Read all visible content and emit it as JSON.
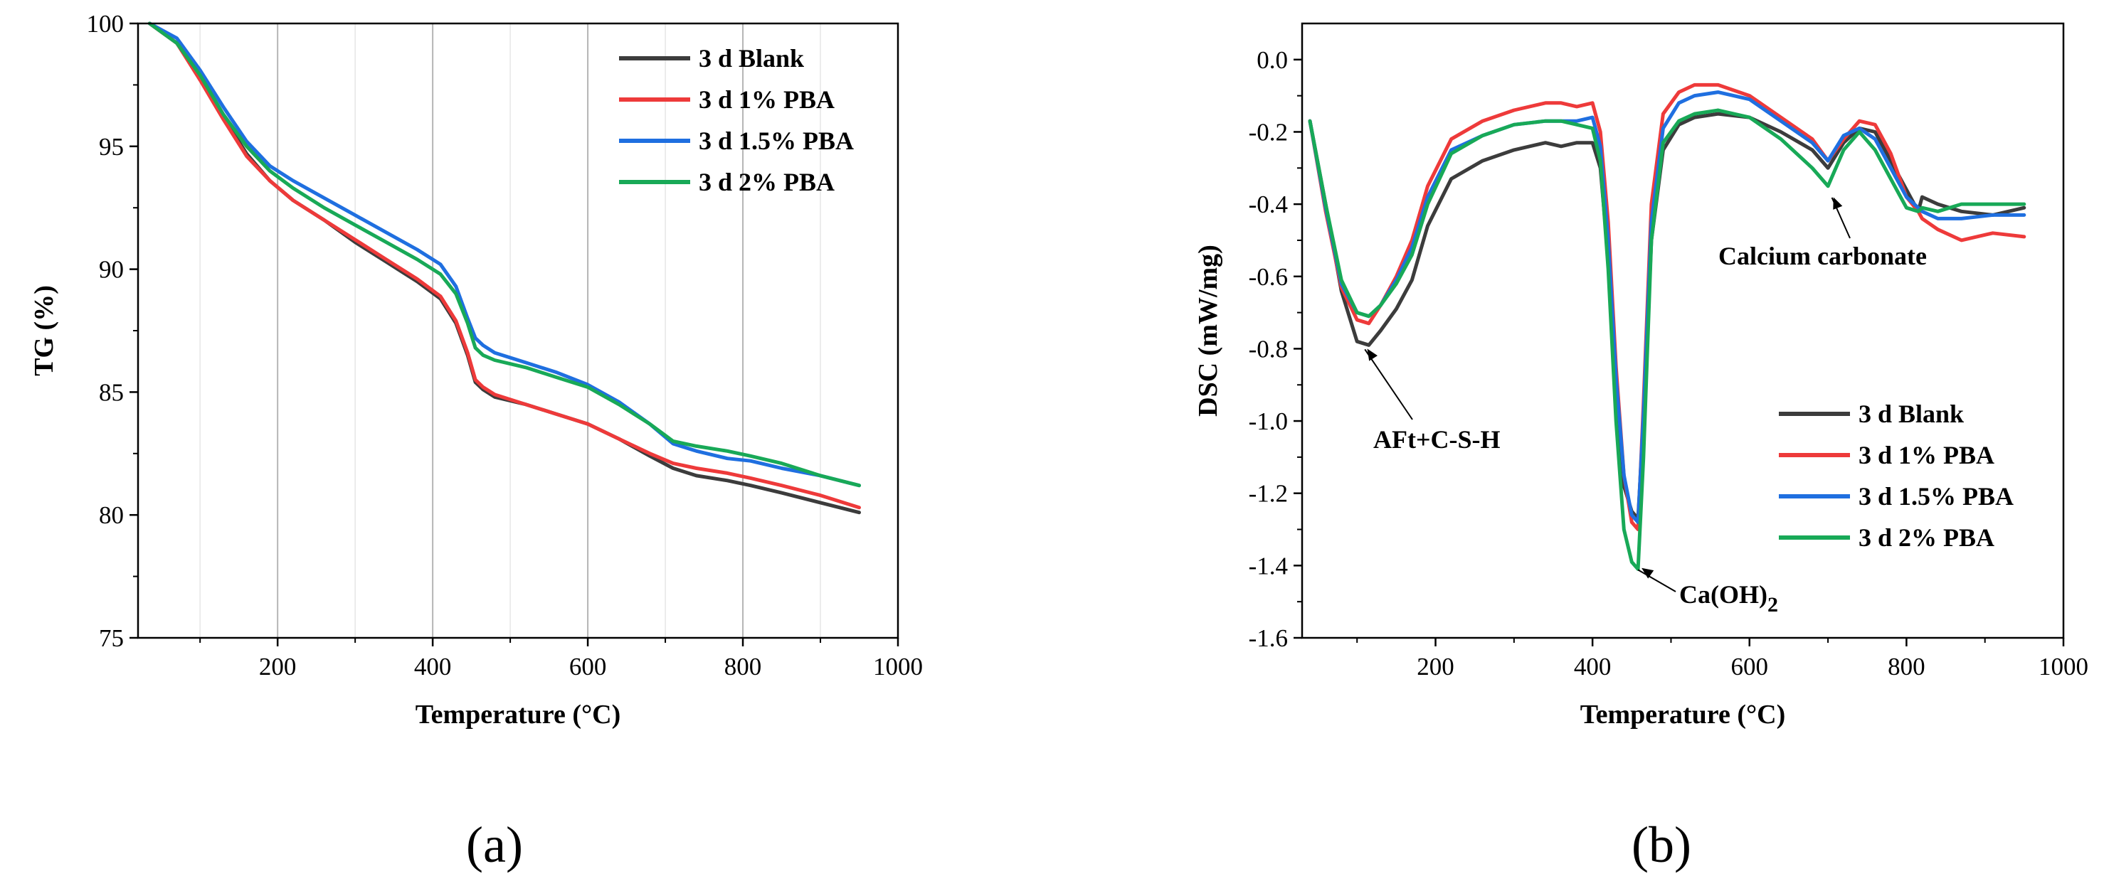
{
  "panel_labels": [
    "(a)",
    "(b)"
  ],
  "chart_data": [
    {
      "type": "line",
      "xlabel": "Temperature (°C)",
      "ylabel": "TG (%)",
      "xlim": [
        20,
        1000
      ],
      "ylim": [
        75,
        100
      ],
      "xticks": [
        200,
        400,
        600,
        800,
        1000
      ],
      "yticks": [
        75,
        80,
        85,
        90,
        95,
        100
      ],
      "grid": "vertical lines at 200, 400, 600, 800",
      "legend_position": "top-right",
      "series": [
        {
          "name": "3 d Blank",
          "color": "#3c3c3c",
          "x": [
            35,
            70,
            100,
            130,
            160,
            190,
            220,
            260,
            300,
            340,
            380,
            410,
            430,
            445,
            455,
            465,
            480,
            520,
            560,
            600,
            640,
            680,
            710,
            740,
            780,
            810,
            850,
            900,
            950
          ],
          "y": [
            100,
            99.2,
            97.8,
            96.2,
            94.7,
            93.6,
            92.8,
            92.0,
            91.1,
            90.3,
            89.5,
            88.8,
            87.8,
            86.5,
            85.4,
            85.1,
            84.8,
            84.5,
            84.1,
            83.7,
            83.1,
            82.4,
            81.9,
            81.6,
            81.4,
            81.2,
            80.9,
            80.5,
            80.1
          ]
        },
        {
          "name": "3 d 1% PBA",
          "color": "#ee3a3a",
          "x": [
            35,
            70,
            100,
            130,
            160,
            190,
            220,
            260,
            300,
            340,
            380,
            410,
            430,
            445,
            455,
            465,
            480,
            520,
            560,
            600,
            640,
            680,
            710,
            740,
            780,
            810,
            850,
            900,
            950
          ],
          "y": [
            100,
            99.2,
            97.7,
            96.1,
            94.6,
            93.6,
            92.8,
            92.0,
            91.2,
            90.4,
            89.6,
            88.9,
            87.9,
            86.6,
            85.5,
            85.2,
            84.9,
            84.5,
            84.1,
            83.7,
            83.1,
            82.5,
            82.1,
            81.9,
            81.7,
            81.5,
            81.2,
            80.8,
            80.3
          ]
        },
        {
          "name": "3 d 1.5% PBA",
          "color": "#1f6fe0",
          "x": [
            35,
            70,
            100,
            130,
            160,
            190,
            220,
            260,
            300,
            340,
            380,
            410,
            430,
            445,
            455,
            465,
            480,
            520,
            560,
            600,
            640,
            680,
            710,
            740,
            780,
            810,
            850,
            900,
            950
          ],
          "y": [
            100,
            99.4,
            98.1,
            96.6,
            95.2,
            94.2,
            93.6,
            92.9,
            92.2,
            91.5,
            90.8,
            90.2,
            89.3,
            88.0,
            87.2,
            86.9,
            86.6,
            86.2,
            85.8,
            85.3,
            84.6,
            83.7,
            82.9,
            82.6,
            82.3,
            82.2,
            81.9,
            81.6,
            81.2
          ]
        },
        {
          "name": "3 d 2% PBA",
          "color": "#18a957",
          "x": [
            35,
            70,
            100,
            130,
            160,
            190,
            220,
            260,
            300,
            340,
            380,
            410,
            430,
            445,
            455,
            465,
            480,
            520,
            560,
            600,
            640,
            680,
            710,
            740,
            780,
            810,
            850,
            900,
            950
          ],
          "y": [
            100,
            99.2,
            97.9,
            96.3,
            95.0,
            94.0,
            93.3,
            92.5,
            91.8,
            91.1,
            90.4,
            89.8,
            89.0,
            87.8,
            86.8,
            86.5,
            86.3,
            86.0,
            85.6,
            85.2,
            84.5,
            83.7,
            83.0,
            82.8,
            82.6,
            82.4,
            82.1,
            81.6,
            81.2
          ]
        }
      ]
    },
    {
      "type": "line",
      "xlabel": "Temperature (°C)",
      "ylabel": "DSC (mW/mg)",
      "xlim": [
        30,
        1000
      ],
      "ylim": [
        -1.6,
        0.1
      ],
      "xticks": [
        200,
        400,
        600,
        800,
        1000
      ],
      "yticks": [
        -1.6,
        -1.4,
        -1.2,
        -1.0,
        -0.8,
        -0.6,
        -0.4,
        -0.2,
        0.0
      ],
      "grid": false,
      "legend_position": "bottom-right",
      "annotations": [
        {
          "text": "AFt+C-S-H",
          "x": 110,
          "y": -0.79
        },
        {
          "text": "Ca(OH)",
          "subscript": "2",
          "x": 458,
          "y": -1.4
        },
        {
          "text": "Calcium carbonate",
          "x": 705,
          "y": -0.37
        }
      ],
      "series": [
        {
          "name": "3 d Blank",
          "color": "#3c3c3c",
          "x": [
            40,
            60,
            80,
            100,
            115,
            130,
            150,
            170,
            190,
            220,
            260,
            300,
            340,
            360,
            380,
            400,
            410,
            420,
            430,
            440,
            450,
            458,
            465,
            475,
            490,
            510,
            530,
            560,
            600,
            640,
            680,
            700,
            720,
            740,
            760,
            780,
            800,
            815,
            820,
            840,
            870,
            910,
            950
          ],
          "y": [
            -0.17,
            -0.4,
            -0.64,
            -0.78,
            -0.79,
            -0.75,
            -0.69,
            -0.61,
            -0.46,
            -0.33,
            -0.28,
            -0.25,
            -0.23,
            -0.24,
            -0.23,
            -0.23,
            -0.3,
            -0.55,
            -0.9,
            -1.18,
            -1.25,
            -1.27,
            -1.0,
            -0.5,
            -0.25,
            -0.18,
            -0.16,
            -0.15,
            -0.16,
            -0.2,
            -0.25,
            -0.3,
            -0.23,
            -0.19,
            -0.2,
            -0.28,
            -0.36,
            -0.42,
            -0.38,
            -0.4,
            -0.42,
            -0.43,
            -0.41
          ]
        },
        {
          "name": "3 d 1% PBA",
          "color": "#ee3a3a",
          "x": [
            40,
            60,
            80,
            100,
            115,
            130,
            150,
            170,
            190,
            220,
            260,
            300,
            340,
            360,
            380,
            400,
            410,
            420,
            430,
            440,
            450,
            458,
            465,
            475,
            490,
            510,
            530,
            560,
            600,
            640,
            680,
            700,
            720,
            740,
            760,
            780,
            800,
            815,
            820,
            840,
            870,
            910,
            950
          ],
          "y": [
            -0.17,
            -0.42,
            -0.63,
            -0.72,
            -0.73,
            -0.68,
            -0.6,
            -0.5,
            -0.35,
            -0.22,
            -0.17,
            -0.14,
            -0.12,
            -0.12,
            -0.13,
            -0.12,
            -0.2,
            -0.45,
            -0.85,
            -1.15,
            -1.28,
            -1.3,
            -0.95,
            -0.4,
            -0.15,
            -0.09,
            -0.07,
            -0.07,
            -0.1,
            -0.16,
            -0.22,
            -0.28,
            -0.22,
            -0.17,
            -0.18,
            -0.26,
            -0.38,
            -0.42,
            -0.44,
            -0.47,
            -0.5,
            -0.48,
            -0.49
          ]
        },
        {
          "name": "3 d 1.5% PBA",
          "color": "#1f6fe0",
          "x": [
            40,
            60,
            80,
            100,
            115,
            130,
            150,
            170,
            190,
            220,
            260,
            300,
            340,
            360,
            380,
            400,
            410,
            420,
            430,
            440,
            450,
            458,
            465,
            475,
            490,
            510,
            530,
            560,
            600,
            640,
            680,
            700,
            720,
            740,
            760,
            780,
            800,
            815,
            820,
            840,
            870,
            910,
            950
          ],
          "y": [
            -0.17,
            -0.41,
            -0.62,
            -0.7,
            -0.71,
            -0.68,
            -0.61,
            -0.52,
            -0.38,
            -0.25,
            -0.21,
            -0.18,
            -0.17,
            -0.17,
            -0.17,
            -0.16,
            -0.24,
            -0.5,
            -0.88,
            -1.15,
            -1.26,
            -1.28,
            -0.98,
            -0.45,
            -0.19,
            -0.12,
            -0.1,
            -0.09,
            -0.11,
            -0.17,
            -0.23,
            -0.28,
            -0.21,
            -0.19,
            -0.22,
            -0.3,
            -0.38,
            -0.41,
            -0.42,
            -0.44,
            -0.44,
            -0.43,
            -0.43
          ]
        },
        {
          "name": "3 d 2% PBA",
          "color": "#18a957",
          "x": [
            40,
            60,
            80,
            100,
            115,
            130,
            150,
            170,
            190,
            220,
            260,
            300,
            340,
            360,
            380,
            400,
            410,
            420,
            430,
            440,
            450,
            458,
            465,
            475,
            490,
            510,
            530,
            560,
            600,
            640,
            680,
            700,
            720,
            740,
            760,
            780,
            800,
            815,
            820,
            840,
            870,
            910,
            950
          ],
          "y": [
            -0.17,
            -0.4,
            -0.61,
            -0.7,
            -0.71,
            -0.68,
            -0.62,
            -0.54,
            -0.4,
            -0.26,
            -0.21,
            -0.18,
            -0.17,
            -0.17,
            -0.18,
            -0.19,
            -0.28,
            -0.58,
            -1.0,
            -1.3,
            -1.39,
            -1.41,
            -1.1,
            -0.5,
            -0.23,
            -0.17,
            -0.15,
            -0.14,
            -0.16,
            -0.22,
            -0.3,
            -0.35,
            -0.25,
            -0.2,
            -0.25,
            -0.33,
            -0.41,
            -0.42,
            -0.41,
            -0.42,
            -0.4,
            -0.4,
            -0.4
          ]
        }
      ]
    }
  ]
}
